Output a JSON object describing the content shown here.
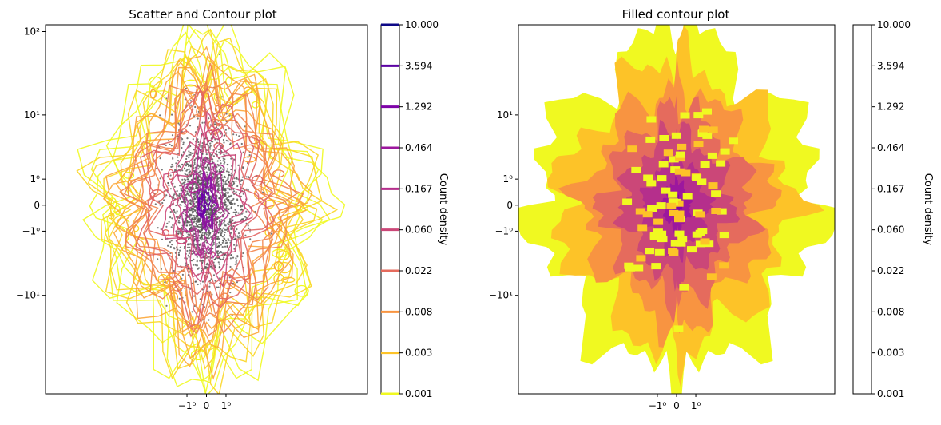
{
  "chart_data": [
    {
      "type": "scatter",
      "overlay": "contour",
      "title": "Scatter and Contour plot",
      "xscale": "symlog",
      "yscale": "symlog",
      "x_ticks": [
        {
          "value": -1,
          "label": "−1⁰"
        },
        {
          "value": 0,
          "label": "0"
        },
        {
          "value": 1,
          "label": "1⁰"
        }
      ],
      "y_ticks": [
        {
          "value": 100,
          "label": "10²"
        },
        {
          "value": 10,
          "label": "10¹"
        },
        {
          "value": 1,
          "label": "1⁰"
        },
        {
          "value": 0,
          "label": "0"
        },
        {
          "value": -1,
          "label": "−1⁰"
        },
        {
          "value": -10,
          "label": "−10¹"
        }
      ],
      "xlim": [
        -300,
        300
      ],
      "ylim": [
        -150,
        120
      ],
      "points": {
        "color": "#555555",
        "count": 2000
      },
      "colorbar": {
        "label": "Count density",
        "scale": "log",
        "tick_labels": [
          "10.000",
          "3.594",
          "1.292",
          "0.464",
          "0.167",
          "0.060",
          "0.022",
          "0.008",
          "0.003",
          "0.001"
        ],
        "level_colors": [
          "#0d0887",
          "#5b02a3",
          "#9a179b",
          "#cb4678",
          "#eb7852",
          "#fbb32f",
          "#f0f921"
        ]
      },
      "contour_levels": [
        {
          "level": 0.001,
          "color": "#f0f921"
        },
        {
          "level": 0.003,
          "color": "#fbd524"
        },
        {
          "level": 0.008,
          "color": "#fca636"
        },
        {
          "level": 0.022,
          "color": "#f2844b"
        },
        {
          "level": 0.06,
          "color": "#e16462"
        },
        {
          "level": 0.167,
          "color": "#cc4778"
        },
        {
          "level": 0.464,
          "color": "#b12a90"
        },
        {
          "level": 1.292,
          "color": "#8f0da4"
        },
        {
          "level": 3.594,
          "color": "#6a00a8"
        },
        {
          "level": 10.0,
          "color": "#0d0887"
        }
      ]
    },
    {
      "type": "heatmap",
      "subtype": "filled-contour",
      "title": "Filled contour plot",
      "xscale": "symlog",
      "yscale": "symlog",
      "x_ticks": [
        {
          "value": -1,
          "label": "−1⁰"
        },
        {
          "value": 0,
          "label": "0"
        },
        {
          "value": 1,
          "label": "1⁰"
        }
      ],
      "y_ticks": [
        {
          "value": 10,
          "label": "10¹"
        },
        {
          "value": 1,
          "label": "1⁰"
        },
        {
          "value": 0,
          "label": "0"
        },
        {
          "value": -1,
          "label": "−1⁰"
        },
        {
          "value": -10,
          "label": "−10¹"
        }
      ],
      "xlim": [
        -300,
        300
      ],
      "ylim": [
        -150,
        120
      ],
      "colorbar": {
        "label": "Count density",
        "scale": "log",
        "tick_labels": [
          "10.000",
          "3.594",
          "1.292",
          "0.464",
          "0.167",
          "0.060",
          "0.022",
          "0.008",
          "0.003",
          "0.001"
        ],
        "band_colors": [
          "#f0f921",
          "#fdc328",
          "#f89441",
          "#e56b5d",
          "#cb4778",
          "#b52f8c",
          "#9c179e",
          "#7e03a8",
          "#5c01a6",
          "#2a0593"
        ]
      },
      "fill_levels": [
        0.001,
        0.003,
        0.008,
        0.022,
        0.06,
        0.167,
        0.464,
        1.292,
        3.594,
        10.0
      ]
    }
  ]
}
